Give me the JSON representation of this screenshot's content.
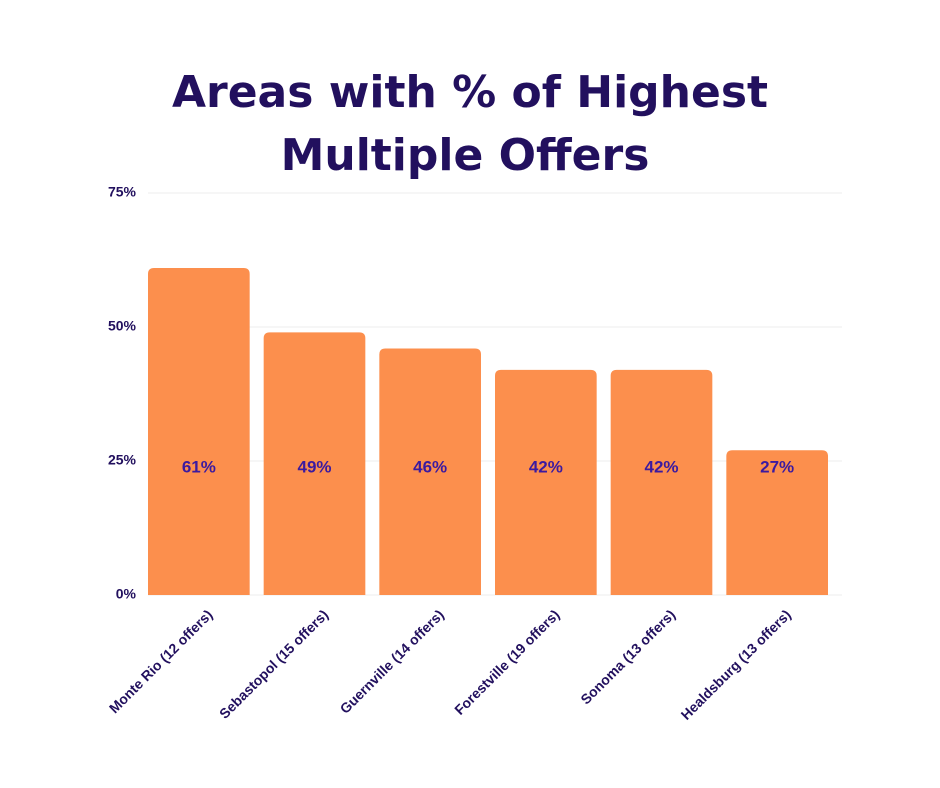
{
  "chart_data": {
    "type": "bar",
    "title_lines": [
      "Areas with % of Highest",
      "Multiple Offers"
    ],
    "categories": [
      "Monte Rio (12 offers)",
      "Sebastopol  (15 offers)",
      "Guernville (14 offers)",
      "Forestville (19 offers)",
      "Sonoma (13 offers)",
      "Healdsburg (13 offers)"
    ],
    "values": [
      61,
      49,
      46,
      42,
      42,
      27
    ],
    "value_labels": [
      "61%",
      "49%",
      "46%",
      "42%",
      "42%",
      "27%"
    ],
    "color": "#fc8f4d",
    "ylim": [
      0,
      75
    ],
    "yticks": [
      {
        "value": 0,
        "label": "0%"
      },
      {
        "value": 25,
        "label": "25%"
      },
      {
        "value": 50,
        "label": "50%"
      },
      {
        "value": 75,
        "label": "75%"
      }
    ],
    "grid": true
  }
}
